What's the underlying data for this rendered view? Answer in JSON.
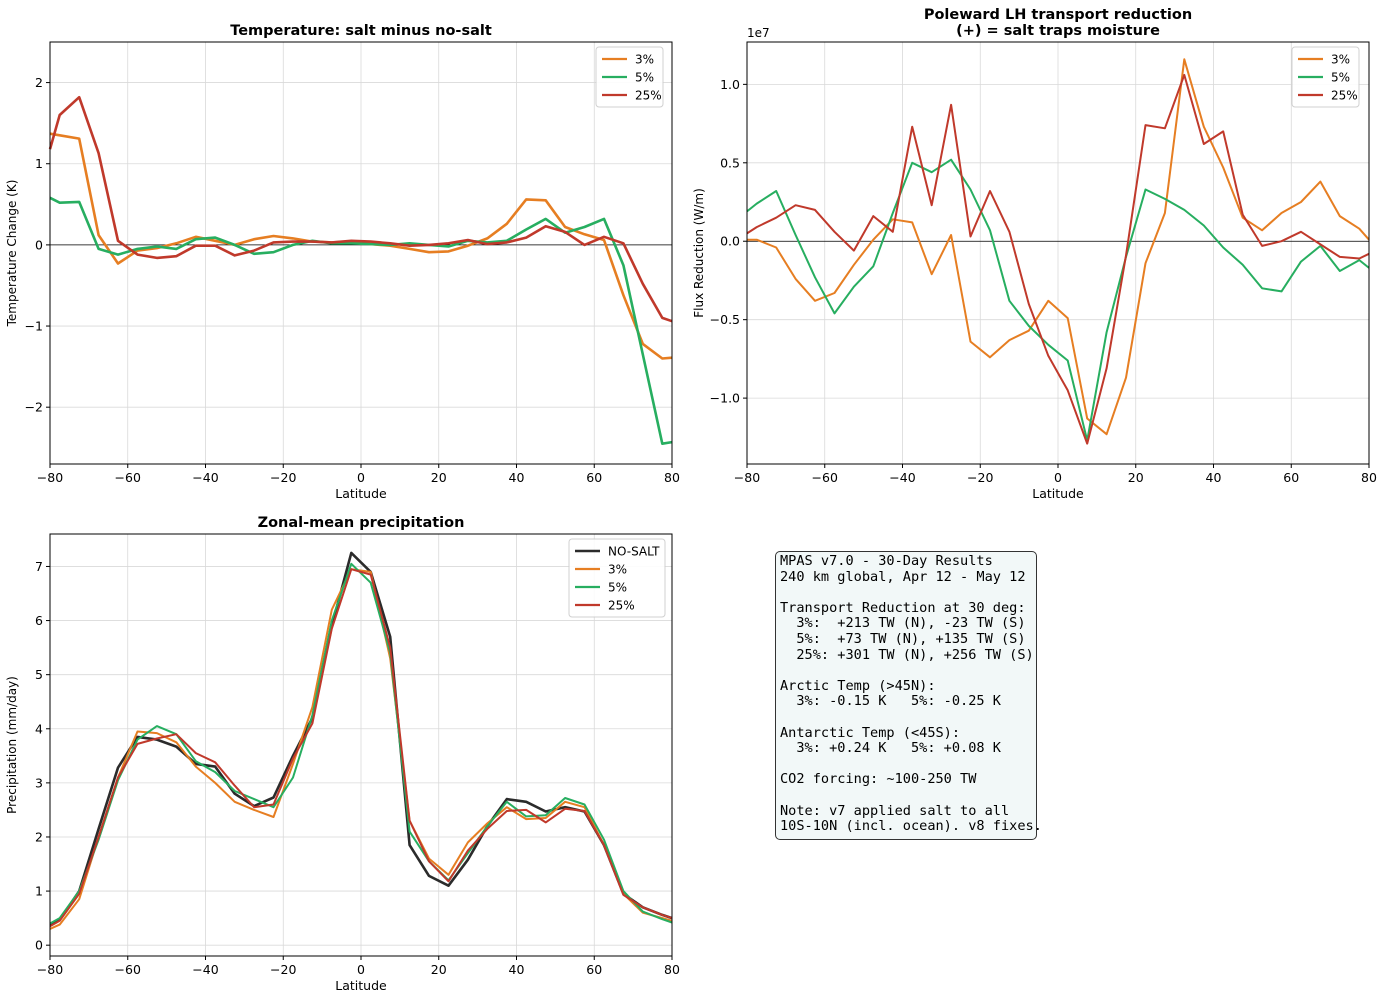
{
  "chart_data": [
    {
      "type": "line",
      "title": "Temperature: salt minus no-salt",
      "xlabel": "Latitude",
      "ylabel": "Temperature Change (K)",
      "xlim": [
        -80,
        80
      ],
      "ylim": [
        -2.7,
        2.5
      ],
      "xticks": [
        -80,
        -60,
        -40,
        -20,
        0,
        20,
        40,
        60,
        80
      ],
      "yticks": [
        -2,
        -1,
        0,
        1,
        2
      ],
      "zero_line": true,
      "grid": true,
      "legend": "top-right",
      "x": [
        -80,
        -77.5,
        -72.5,
        -67.5,
        -62.5,
        -57.5,
        -52.5,
        -47.5,
        -42.5,
        -37.5,
        -32.5,
        -27.5,
        -22.5,
        -17.5,
        -12.5,
        -7.5,
        -2.5,
        2.5,
        7.5,
        12.5,
        17.5,
        22.5,
        27.5,
        32.5,
        37.5,
        42.5,
        47.5,
        52.5,
        57.5,
        62.5,
        67.5,
        72.5,
        77.5,
        80
      ],
      "series": [
        {
          "name": "3%",
          "color": "#e67e22",
          "values": [
            1.37,
            1.35,
            1.31,
            0.12,
            -0.23,
            -0.07,
            -0.04,
            0.02,
            0.1,
            0.05,
            0.0,
            0.07,
            0.11,
            0.08,
            0.04,
            0.03,
            0.04,
            0.01,
            -0.01,
            -0.05,
            -0.09,
            -0.08,
            -0.01,
            0.08,
            0.26,
            0.56,
            0.55,
            0.22,
            0.13,
            0.06,
            -0.62,
            -1.22,
            -1.4,
            -1.39
          ]
        },
        {
          "name": "5%",
          "color": "#27ae60",
          "values": [
            0.58,
            0.52,
            0.53,
            -0.05,
            -0.12,
            -0.05,
            -0.02,
            -0.05,
            0.07,
            0.09,
            0.0,
            -0.11,
            -0.09,
            0.0,
            0.05,
            0.02,
            0.02,
            0.01,
            0.0,
            0.02,
            0.0,
            -0.02,
            0.05,
            0.03,
            0.05,
            0.19,
            0.32,
            0.15,
            0.22,
            0.32,
            -0.25,
            -1.35,
            -2.45,
            -2.43
          ]
        },
        {
          "name": "25%",
          "color": "#c0392b",
          "values": [
            1.18,
            1.6,
            1.82,
            1.13,
            0.05,
            -0.12,
            -0.16,
            -0.14,
            -0.01,
            -0.01,
            -0.13,
            -0.07,
            0.03,
            0.04,
            0.04,
            0.03,
            0.05,
            0.04,
            0.02,
            -0.01,
            0.0,
            0.02,
            0.06,
            0.01,
            0.03,
            0.09,
            0.23,
            0.16,
            0.0,
            0.1,
            0.02,
            -0.48,
            -0.9,
            -0.94
          ]
        }
      ]
    },
    {
      "type": "line",
      "title": "Poleward LH transport reduction",
      "subtitle": "(+) = salt traps moisture",
      "xlabel": "Latitude",
      "ylabel": "Flux Reduction (W/m)",
      "y_offset_label": "1e7",
      "xlim": [
        -80,
        80
      ],
      "ylim": [
        -1.42,
        1.27
      ],
      "xticks": [
        -80,
        -60,
        -40,
        -20,
        0,
        20,
        40,
        60,
        80
      ],
      "yticks": [
        -1.0,
        -0.5,
        0.0,
        0.5,
        1.0
      ],
      "ytick_labels": [
        "−1.0",
        "−0.5",
        "0.0",
        "0.5",
        "1.0"
      ],
      "zero_line": true,
      "grid": true,
      "legend": "top-right",
      "x": [
        -80,
        -77.5,
        -72.5,
        -67.5,
        -62.5,
        -57.5,
        -52.5,
        -47.5,
        -42.5,
        -37.5,
        -32.5,
        -27.5,
        -22.5,
        -17.5,
        -12.5,
        -7.5,
        -2.5,
        2.5,
        7.5,
        12.5,
        17.5,
        22.5,
        27.5,
        32.5,
        37.5,
        42.5,
        47.5,
        52.5,
        57.5,
        62.5,
        67.5,
        72.5,
        77.5,
        80
      ],
      "series": [
        {
          "name": "3%",
          "color": "#e67e22",
          "values": [
            0.01,
            0.01,
            -0.04,
            -0.24,
            -0.38,
            -0.33,
            -0.15,
            0.01,
            0.14,
            0.12,
            -0.21,
            0.04,
            -0.64,
            -0.74,
            -0.63,
            -0.57,
            -0.38,
            -0.49,
            -1.13,
            -1.23,
            -0.87,
            -0.14,
            0.18,
            1.16,
            0.73,
            0.47,
            0.15,
            0.07,
            0.18,
            0.25,
            0.38,
            0.16,
            0.08,
            0.01
          ]
        },
        {
          "name": "5%",
          "color": "#27ae60",
          "values": [
            0.19,
            0.24,
            0.32,
            0.04,
            -0.23,
            -0.46,
            -0.29,
            -0.16,
            0.18,
            0.5,
            0.44,
            0.52,
            0.33,
            0.07,
            -0.38,
            -0.54,
            -0.66,
            -0.76,
            -1.27,
            -0.58,
            -0.1,
            0.33,
            0.27,
            0.2,
            0.1,
            -0.04,
            -0.15,
            -0.3,
            -0.32,
            -0.13,
            -0.03,
            -0.19,
            -0.12,
            -0.17
          ]
        },
        {
          "name": "25%",
          "color": "#c0392b",
          "values": [
            0.05,
            0.09,
            0.15,
            0.23,
            0.2,
            0.06,
            -0.06,
            0.16,
            0.06,
            0.73,
            0.23,
            0.87,
            0.03,
            0.32,
            0.06,
            -0.4,
            -0.73,
            -0.95,
            -1.29,
            -0.81,
            -0.09,
            0.74,
            0.72,
            1.06,
            0.62,
            0.7,
            0.17,
            -0.03,
            0.0,
            0.06,
            -0.02,
            -0.1,
            -0.11,
            -0.08
          ]
        }
      ]
    },
    {
      "type": "line",
      "title": "Zonal-mean precipitation",
      "xlabel": "Latitude",
      "ylabel": "Precipitation (mm/day)",
      "xlim": [
        -80,
        80
      ],
      "ylim": [
        -0.2,
        7.6
      ],
      "xticks": [
        -80,
        -60,
        -40,
        -20,
        0,
        20,
        40,
        60,
        80
      ],
      "yticks": [
        0,
        1,
        2,
        3,
        4,
        5,
        6,
        7
      ],
      "grid": true,
      "legend": "top-right",
      "x": [
        -80,
        -77.5,
        -72.5,
        -67.5,
        -62.5,
        -57.5,
        -52.5,
        -47.5,
        -42.5,
        -37.5,
        -32.5,
        -27.5,
        -22.5,
        -17.5,
        -12.5,
        -7.5,
        -2.5,
        2.5,
        7.5,
        12.5,
        17.5,
        22.5,
        27.5,
        32.5,
        37.5,
        42.5,
        47.5,
        52.5,
        57.5,
        62.5,
        67.5,
        72.5,
        77.5,
        80
      ],
      "series": [
        {
          "name": "NO-SALT",
          "color": "#2b2b2b",
          "values": [
            0.38,
            0.47,
            1.0,
            2.15,
            3.28,
            3.85,
            3.8,
            3.67,
            3.35,
            3.3,
            2.8,
            2.57,
            2.73,
            3.5,
            4.2,
            5.9,
            7.25,
            6.9,
            5.7,
            1.85,
            1.28,
            1.1,
            1.58,
            2.2,
            2.7,
            2.65,
            2.47,
            2.55,
            2.47,
            1.85,
            0.95,
            0.7,
            0.56,
            0.5
          ]
        },
        {
          "name": "3%",
          "color": "#e67e22",
          "values": [
            0.3,
            0.38,
            0.85,
            2.0,
            3.1,
            3.95,
            3.92,
            3.75,
            3.3,
            3.0,
            2.65,
            2.5,
            2.37,
            3.35,
            4.4,
            6.2,
            6.95,
            6.9,
            5.3,
            2.3,
            1.6,
            1.3,
            1.9,
            2.25,
            2.55,
            2.33,
            2.35,
            2.65,
            2.55,
            1.85,
            0.95,
            0.6,
            0.5,
            0.45
          ]
        },
        {
          "name": "5%",
          "color": "#27ae60",
          "values": [
            0.4,
            0.5,
            1.0,
            1.95,
            3.05,
            3.8,
            4.05,
            3.9,
            3.4,
            3.2,
            2.85,
            2.7,
            2.55,
            3.1,
            4.25,
            6.0,
            7.05,
            6.7,
            5.4,
            2.1,
            1.55,
            1.2,
            1.7,
            2.2,
            2.65,
            2.38,
            2.4,
            2.72,
            2.6,
            1.95,
            1.0,
            0.62,
            0.48,
            0.42
          ]
        },
        {
          "name": "25%",
          "color": "#c0392b",
          "values": [
            0.35,
            0.45,
            0.95,
            2.0,
            3.1,
            3.72,
            3.82,
            3.9,
            3.55,
            3.38,
            2.95,
            2.55,
            2.6,
            3.45,
            4.1,
            5.85,
            6.95,
            6.85,
            5.5,
            2.3,
            1.55,
            1.18,
            1.75,
            2.15,
            2.48,
            2.5,
            2.27,
            2.52,
            2.48,
            1.85,
            0.93,
            0.7,
            0.56,
            0.5
          ]
        }
      ]
    }
  ],
  "info_box": {
    "lines": [
      "MPAS v7.0 - 30-Day Results",
      "240 km global, Apr 12 - May 12",
      "",
      "Transport Reduction at 30 deg:",
      "  3%:  +213 TW (N), -23 TW (S)",
      "  5%:  +73 TW (N), +135 TW (S)",
      "  25%: +301 TW (N), +256 TW (S)",
      "",
      "Arctic Temp (>45N):",
      "  3%: -0.15 K   5%: -0.25 K",
      "",
      "Antarctic Temp (<45S):",
      "  3%: +0.24 K   5%: +0.08 K",
      "",
      "CO2 forcing: ~100-250 TW",
      "",
      "Note: v7 applied salt to all",
      "10S-10N (incl. ocean). v8 fixes."
    ]
  }
}
